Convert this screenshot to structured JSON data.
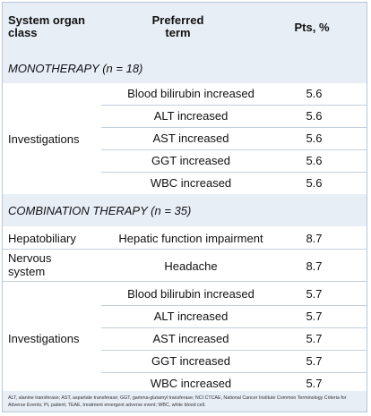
{
  "header": {
    "col1_line1": "System organ",
    "col1_line2": "class",
    "col2_line1": "Preferred",
    "col2_line2": "term",
    "col3": "Pts, %"
  },
  "mono": {
    "heading": "MONOTHERAPY (n = 18)",
    "soc": "Investigations",
    "rows": [
      {
        "term": "Blood bilirubin increased",
        "pts": "5.6"
      },
      {
        "term": "ALT increased",
        "pts": "5.6"
      },
      {
        "term": "AST increased",
        "pts": "5.6"
      },
      {
        "term": "GGT increased",
        "pts": "5.6"
      },
      {
        "term": "WBC increased",
        "pts": "5.6"
      }
    ]
  },
  "combo": {
    "heading": "COMBINATION THERAPY (n = 35)",
    "hep_soc": "Hepatobiliary",
    "hep_term": "Hepatic function impairment",
    "hep_pts": "8.7",
    "nerv_soc_line1": "Nervous",
    "nerv_soc_line2": "system",
    "nerv_term": "Headache",
    "nerv_pts": "8.7",
    "soc": "Investigations",
    "rows": [
      {
        "term": "Blood bilirubin increased",
        "pts": "5.7"
      },
      {
        "term": "ALT increased",
        "pts": "5.7"
      },
      {
        "term": "AST increased",
        "pts": "5.7"
      },
      {
        "term": "GGT increased",
        "pts": "5.7"
      },
      {
        "term": "WBC increased",
        "pts": "5.7"
      }
    ]
  },
  "footnote": "ALT, alanine transferase; AST, aspartate transferase; GGT, gamma-glutamyl transferase; NCI CTCAE, National Cancer Institute Common Terminology Criteria for Adverse Events; Pt, patient; TEAE, treatment emergent adverse event; WBC, white blood cell."
}
